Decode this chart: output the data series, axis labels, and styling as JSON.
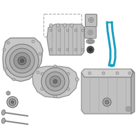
{
  "background_color": "#ffffff",
  "highlight_color": "#1a9fc0",
  "part_fill": "#c8c8c8",
  "part_edge": "#888888",
  "dark_fill": "#606060",
  "dark_edge": "#404040",
  "bolt_fill": "#bbbbbb",
  "bolt_edge": "#777777",
  "gasket_color": "#aaaaaa",
  "pan_fill": "#c0c0c0",
  "pan_edge": "#888888"
}
